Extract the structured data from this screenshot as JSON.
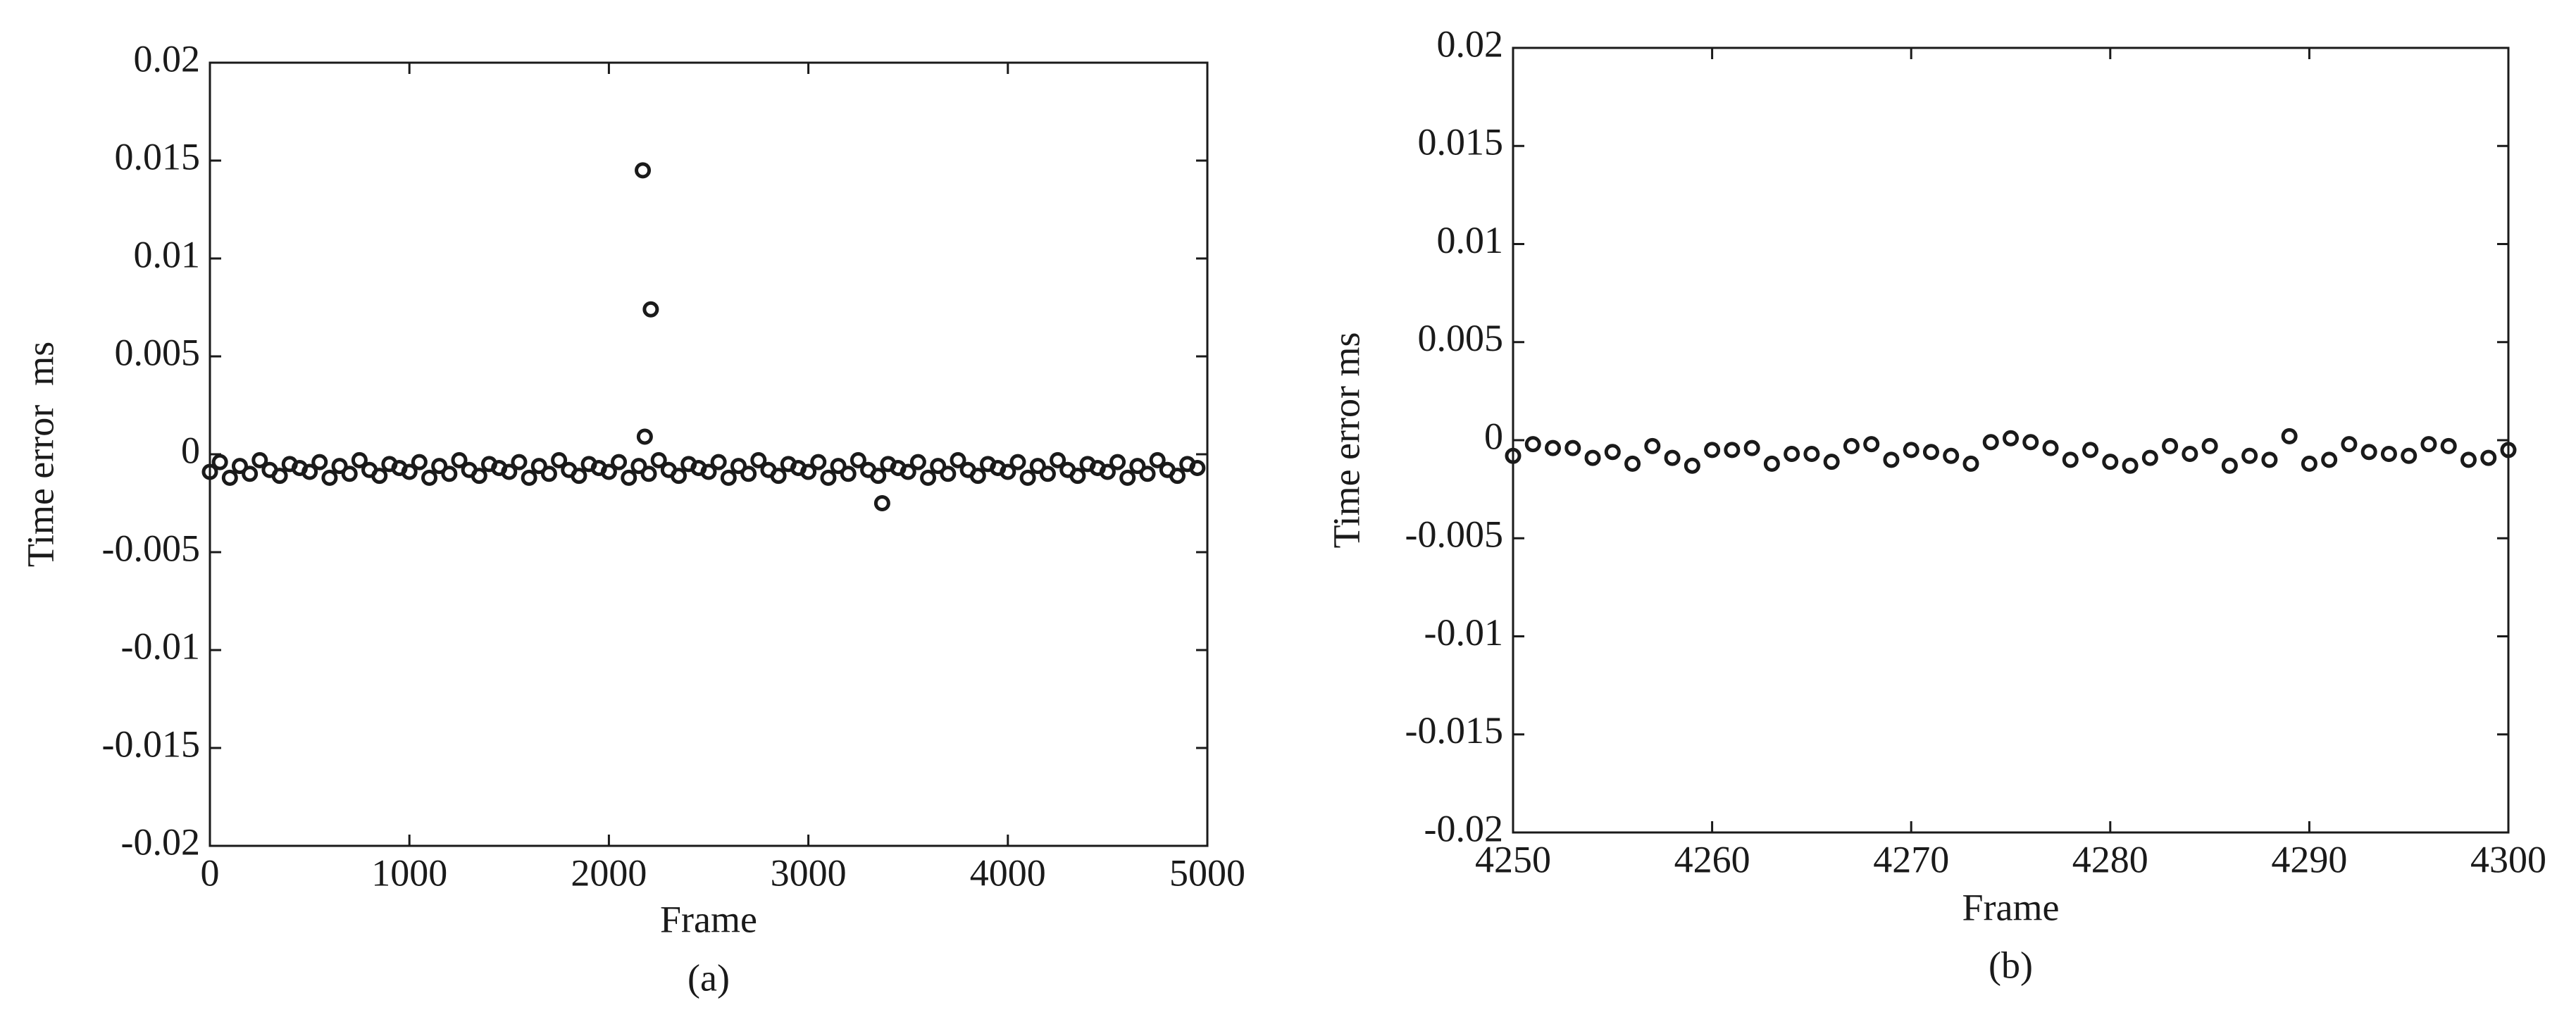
{
  "chart_data": [
    {
      "type": "scatter",
      "xlabel": "Frame",
      "ylabel": "Time error  ms",
      "caption": "(a)",
      "color": "#1a1a1a",
      "x": [
        0,
        50,
        100,
        150,
        200,
        250,
        300,
        350,
        400,
        450,
        500,
        550,
        600,
        650,
        700,
        750,
        800,
        850,
        900,
        950,
        1000,
        1050,
        1100,
        1150,
        1200,
        1250,
        1300,
        1350,
        1400,
        1450,
        1500,
        1550,
        1600,
        1650,
        1700,
        1750,
        1800,
        1850,
        1900,
        1950,
        2000,
        2050,
        2100,
        2150,
        2200,
        2250,
        2300,
        2350,
        2400,
        2450,
        2500,
        2550,
        2600,
        2650,
        2700,
        2750,
        2800,
        2850,
        2900,
        2950,
        3000,
        3050,
        3100,
        3150,
        3200,
        3250,
        3300,
        3350,
        3400,
        3450,
        3500,
        3550,
        3600,
        3650,
        3700,
        3750,
        3800,
        3850,
        3900,
        3950,
        4000,
        4050,
        4100,
        4150,
        4200,
        4250,
        4300,
        4350,
        4400,
        4450,
        4500,
        4550,
        4600,
        4650,
        4700,
        4750,
        4800,
        4850,
        4900,
        4950,
        2170,
        2210,
        2180,
        3370
      ],
      "values": [
        -0.0009,
        -0.0004,
        -0.0012,
        -0.0006,
        -0.001,
        -0.0003,
        -0.0008,
        -0.0011,
        -0.0005,
        -0.0007,
        -0.0009,
        -0.0004,
        -0.0012,
        -0.0006,
        -0.001,
        -0.0003,
        -0.0008,
        -0.0011,
        -0.0005,
        -0.0007,
        -0.0009,
        -0.0004,
        -0.0012,
        -0.0006,
        -0.001,
        -0.0003,
        -0.0008,
        -0.0011,
        -0.0005,
        -0.0007,
        -0.0009,
        -0.0004,
        -0.0012,
        -0.0006,
        -0.001,
        -0.0003,
        -0.0008,
        -0.0011,
        -0.0005,
        -0.0007,
        -0.0009,
        -0.0004,
        -0.0012,
        -0.0006,
        -0.001,
        -0.0003,
        -0.0008,
        -0.0011,
        -0.0005,
        -0.0007,
        -0.0009,
        -0.0004,
        -0.0012,
        -0.0006,
        -0.001,
        -0.0003,
        -0.0008,
        -0.0011,
        -0.0005,
        -0.0007,
        -0.0009,
        -0.0004,
        -0.0012,
        -0.0006,
        -0.001,
        -0.0003,
        -0.0008,
        -0.0011,
        -0.0005,
        -0.0007,
        -0.0009,
        -0.0004,
        -0.0012,
        -0.0006,
        -0.001,
        -0.0003,
        -0.0008,
        -0.0011,
        -0.0005,
        -0.0007,
        -0.0009,
        -0.0004,
        -0.0012,
        -0.0006,
        -0.001,
        -0.0003,
        -0.0008,
        -0.0011,
        -0.0005,
        -0.0007,
        -0.0009,
        -0.0004,
        -0.0012,
        -0.0006,
        -0.001,
        -0.0003,
        -0.0008,
        -0.0011,
        -0.0005,
        -0.0007,
        0.0145,
        0.0074,
        0.0009,
        -0.0025
      ],
      "xlim": [
        0,
        5000
      ],
      "xticks": [
        0,
        1000,
        2000,
        3000,
        4000,
        5000
      ],
      "ylim": [
        -0.02,
        0.02
      ],
      "yticks": [
        -0.02,
        -0.015,
        -0.01,
        -0.005,
        0,
        0.005,
        0.01,
        0.015,
        0.02
      ]
    },
    {
      "type": "scatter",
      "xlabel": "Frame",
      "ylabel": "Time error ms",
      "caption": "(b)",
      "color": "#1a1a1a",
      "x": [
        4250,
        4251,
        4252,
        4253,
        4254,
        4255,
        4256,
        4257,
        4258,
        4259,
        4260,
        4261,
        4262,
        4263,
        4264,
        4265,
        4266,
        4267,
        4268,
        4269,
        4270,
        4271,
        4272,
        4273,
        4274,
        4275,
        4276,
        4277,
        4278,
        4279,
        4280,
        4281,
        4282,
        4283,
        4284,
        4285,
        4286,
        4287,
        4288,
        4289,
        4290,
        4291,
        4292,
        4293,
        4294,
        4295,
        4296,
        4297,
        4298,
        4299,
        4300
      ],
      "values": [
        -0.0008,
        -0.0002,
        -0.0004,
        -0.0004,
        -0.0009,
        -0.0006,
        -0.0012,
        -0.0003,
        -0.0009,
        -0.0013,
        -0.0005,
        -0.0005,
        -0.0004,
        -0.0012,
        -0.0007,
        -0.0007,
        -0.0011,
        -0.0003,
        -0.0002,
        -0.001,
        -0.0005,
        -0.0006,
        -0.0008,
        -0.0012,
        -0.0001,
        0.0001,
        -0.0001,
        -0.0004,
        -0.001,
        -0.0005,
        -0.0011,
        -0.0013,
        -0.0009,
        -0.0003,
        -0.0007,
        -0.0003,
        -0.0013,
        -0.0008,
        -0.001,
        0.0002,
        -0.0012,
        -0.001,
        -0.0002,
        -0.0006,
        -0.0007,
        -0.0008,
        -0.0002,
        -0.0003,
        -0.001,
        -0.0009,
        -0.0005
      ],
      "xlim": [
        4250,
        4300
      ],
      "xticks": [
        4250,
        4260,
        4270,
        4280,
        4290,
        4300
      ],
      "ylim": [
        -0.02,
        0.02
      ],
      "yticks": [
        -0.02,
        -0.015,
        -0.01,
        -0.005,
        0,
        0.005,
        0.01,
        0.015,
        0.02
      ]
    }
  ]
}
